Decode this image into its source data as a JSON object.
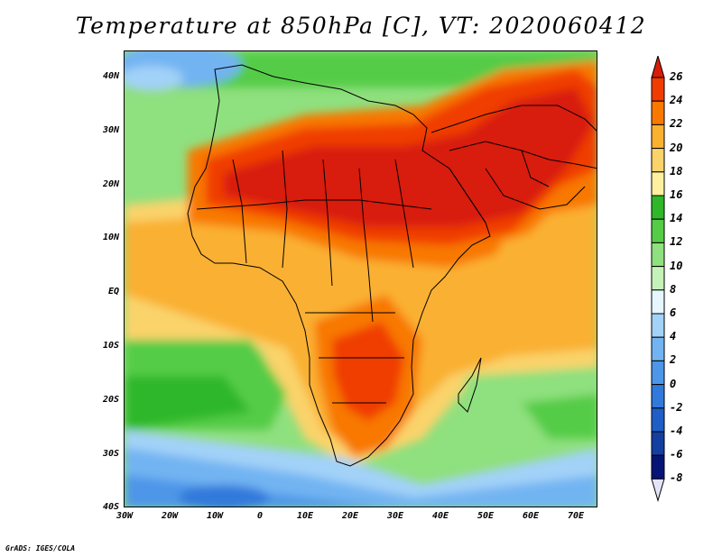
{
  "title": "Temperature at 850hPa [C], VT: 2020060412",
  "credit": "GrADS: IGES/COLA",
  "axes": {
    "lat_ticks": [
      "40N",
      "30N",
      "20N",
      "10N",
      "EQ",
      "10S",
      "20S",
      "30S",
      "40S"
    ],
    "lon_ticks": [
      "30W",
      "20W",
      "10W",
      "0",
      "10E",
      "20E",
      "30E",
      "40E",
      "50E",
      "60E",
      "70E"
    ]
  },
  "colorbar": {
    "labels": [
      "26",
      "24",
      "22",
      "20",
      "18",
      "16",
      "14",
      "12",
      "10",
      "8",
      "6",
      "4",
      "2",
      "0",
      "-2",
      "-4",
      "-6",
      "-8"
    ],
    "colors": [
      "#d81e08",
      "#f03c00",
      "#f87800",
      "#fab030",
      "#fad36a",
      "#fff0a0",
      "#2fb72a",
      "#55cc46",
      "#8fe07e",
      "#c5f2b8",
      "#e6f6ff",
      "#a2d2f8",
      "#72b4f2",
      "#4d96e8",
      "#3179dc",
      "#1f5ec6",
      "#123fa0",
      "#061478",
      "#e4e4f8"
    ]
  },
  "chart_data": {
    "type": "heatmap",
    "title": "Temperature at 850hPa [C], VT: 2020060412",
    "variable": "Temperature at 850hPa",
    "units": "C",
    "valid_time": "2020060412",
    "lon_range": [
      -30,
      75
    ],
    "lat_range": [
      -40,
      45
    ],
    "colorbar_levels": [
      -8,
      -6,
      -4,
      -2,
      0,
      2,
      4,
      6,
      8,
      10,
      12,
      14,
      16,
      18,
      20,
      22,
      24,
      26
    ],
    "colors": {
      "very_hot": "#d81e08",
      "hot": "#f03c00",
      "warm": "#f87800",
      "mild": "#fab030",
      "cool_yellow": "#fad36a",
      "green": "#55cc46",
      "light_green": "#8fe07e",
      "blue": "#72b4f2",
      "dark_blue": "#3179dc"
    }
  }
}
